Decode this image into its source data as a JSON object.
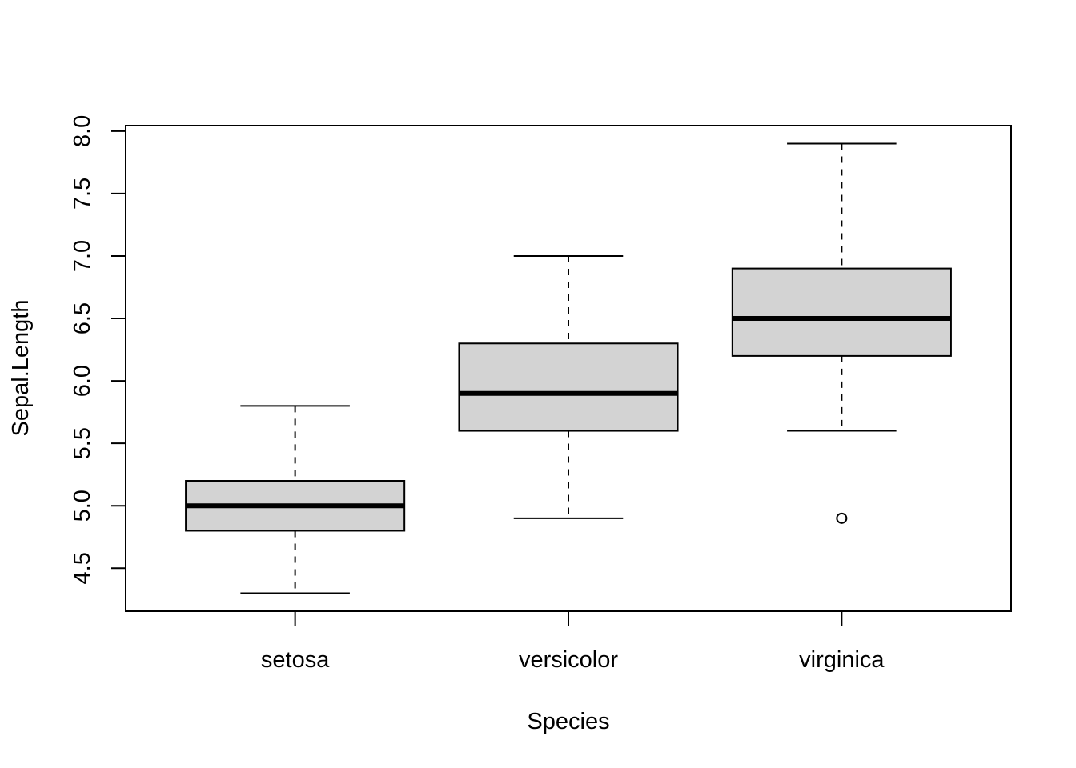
{
  "chart_data": {
    "type": "boxplot",
    "title": "",
    "xlabel": "Species",
    "ylabel": "Sepal.Length",
    "categories": [
      "setosa",
      "versicolor",
      "virginica"
    ],
    "ylim": [
      4.156,
      8.044
    ],
    "yticks": [
      "4.5",
      "5.0",
      "5.5",
      "6.0",
      "6.5",
      "7.0",
      "7.5",
      "8.0"
    ],
    "grid": false,
    "box_fill": "#d3d3d3",
    "boxes": [
      {
        "category": "setosa",
        "whisker_low": 4.3,
        "q1": 4.8,
        "median": 5.0,
        "q3": 5.2,
        "whisker_high": 5.8,
        "outliers": []
      },
      {
        "category": "versicolor",
        "whisker_low": 4.9,
        "q1": 5.6,
        "median": 5.9,
        "q3": 6.3,
        "whisker_high": 7.0,
        "outliers": []
      },
      {
        "category": "virginica",
        "whisker_low": 5.6,
        "q1": 6.2,
        "median": 6.5,
        "q3": 6.9,
        "whisker_high": 7.9,
        "outliers": [
          4.9
        ]
      }
    ]
  }
}
